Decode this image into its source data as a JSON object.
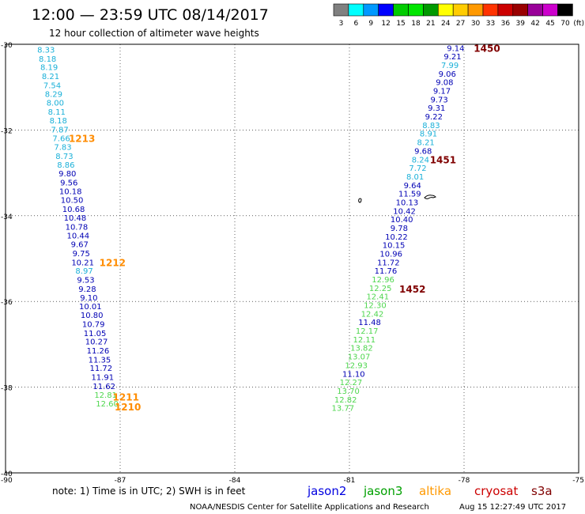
{
  "header": {
    "title": "12:00 — 23:59 UTC 08/14/2017",
    "subtitle": "12 hour collection of altimeter wave heights"
  },
  "legend": {
    "unit": "(ft)",
    "bins": [
      {
        "label": "3",
        "color": "#808080"
      },
      {
        "label": "6",
        "color": "#00ffff"
      },
      {
        "label": "9",
        "color": "#0099ff"
      },
      {
        "label": "12",
        "color": "#0000ff"
      },
      {
        "label": "15",
        "color": "#00cc00"
      },
      {
        "label": "18",
        "color": "#00e600"
      },
      {
        "label": "21",
        "color": "#009900"
      },
      {
        "label": "24",
        "color": "#ffff00"
      },
      {
        "label": "27",
        "color": "#ffcc00"
      },
      {
        "label": "30",
        "color": "#ff9900"
      },
      {
        "label": "33",
        "color": "#ff3300"
      },
      {
        "label": "36",
        "color": "#cc0000"
      },
      {
        "label": "39",
        "color": "#990000"
      },
      {
        "label": "42",
        "color": "#990099"
      },
      {
        "label": "45",
        "color": "#cc00cc"
      },
      {
        "label": "70",
        "color": "#000000"
      }
    ]
  },
  "map": {
    "lon_min": -90,
    "lon_max": -75,
    "lat_min": -40,
    "lat_max": -30,
    "lon_ticks": [
      "-90",
      "-87",
      "-84",
      "-81",
      "-78",
      "-75"
    ],
    "lat_ticks": [
      "-30",
      "-32",
      "-34",
      "-36",
      "-38",
      "-40"
    ],
    "lon_tick_values": [
      -90,
      -87,
      -84,
      -81,
      -78,
      -75
    ],
    "lat_tick_values": [
      -30,
      -32,
      -34,
      -36,
      -38,
      -40
    ],
    "grid_lat": [
      -32,
      -34,
      -36,
      -38
    ],
    "grid_lon": [
      -87,
      -84,
      -81,
      -78
    ],
    "track1": [
      {
        "v": "8.33",
        "lon": -88.94,
        "lat": -30.12,
        "c": "#1ab0d8"
      },
      {
        "v": "8.18",
        "lon": -88.9,
        "lat": -30.33,
        "c": "#1ab0d8"
      },
      {
        "v": "8.19",
        "lon": -88.86,
        "lat": -30.53,
        "c": "#1ab0d8"
      },
      {
        "v": "8.21",
        "lon": -88.82,
        "lat": -30.74,
        "c": "#1ab0d8"
      },
      {
        "v": "7.54",
        "lon": -88.78,
        "lat": -30.95,
        "c": "#1ab0d8"
      },
      {
        "v": "8.29",
        "lon": -88.74,
        "lat": -31.15,
        "c": "#1ab0d8"
      },
      {
        "v": "8.00",
        "lon": -88.7,
        "lat": -31.36,
        "c": "#1ab0d8"
      },
      {
        "v": "8.11",
        "lon": -88.66,
        "lat": -31.57,
        "c": "#1ab0d8"
      },
      {
        "v": "8.18",
        "lon": -88.62,
        "lat": -31.77,
        "c": "#1ab0d8"
      },
      {
        "v": "7.87",
        "lon": -88.58,
        "lat": -31.98,
        "c": "#1ab0d8"
      },
      {
        "v": "7.66",
        "lon": -88.54,
        "lat": -32.19,
        "c": "#1ab0d8"
      },
      {
        "v": "7.83",
        "lon": -88.5,
        "lat": -32.39,
        "c": "#1ab0d8"
      },
      {
        "v": "8.73",
        "lon": -88.46,
        "lat": -32.6,
        "c": "#1ab0d8"
      },
      {
        "v": "8.86",
        "lon": -88.42,
        "lat": -32.8,
        "c": "#1ab0d8"
      },
      {
        "v": "9.80",
        "lon": -88.38,
        "lat": -33.01,
        "c": "#0000b4"
      },
      {
        "v": "9.56",
        "lon": -88.34,
        "lat": -33.22,
        "c": "#0000b4"
      },
      {
        "v": "10.18",
        "lon": -88.3,
        "lat": -33.42,
        "c": "#0000b4"
      },
      {
        "v": "10.50",
        "lon": -88.26,
        "lat": -33.63,
        "c": "#0000b4"
      },
      {
        "v": "10.68",
        "lon": -88.22,
        "lat": -33.84,
        "c": "#0000b4"
      },
      {
        "v": "10.48",
        "lon": -88.18,
        "lat": -34.04,
        "c": "#0000b4"
      },
      {
        "v": "10.78",
        "lon": -88.14,
        "lat": -34.25,
        "c": "#0000b4"
      },
      {
        "v": "10.44",
        "lon": -88.1,
        "lat": -34.46,
        "c": "#0000b4"
      },
      {
        "v": "9.67",
        "lon": -88.06,
        "lat": -34.66,
        "c": "#0000b4"
      },
      {
        "v": "9.75",
        "lon": -88.02,
        "lat": -34.87,
        "c": "#0000b4"
      },
      {
        "v": "10.21",
        "lon": -87.98,
        "lat": -35.08,
        "c": "#0000b4"
      },
      {
        "v": "8.97",
        "lon": -87.94,
        "lat": -35.28,
        "c": "#1ab0d8"
      },
      {
        "v": "9.53",
        "lon": -87.9,
        "lat": -35.49,
        "c": "#0000b4"
      },
      {
        "v": "9.28",
        "lon": -87.86,
        "lat": -35.7,
        "c": "#0000b4"
      },
      {
        "v": "9.10",
        "lon": -87.82,
        "lat": -35.9,
        "c": "#0000b4"
      },
      {
        "v": "10.01",
        "lon": -87.78,
        "lat": -36.11,
        "c": "#0000b4"
      },
      {
        "v": "10.80",
        "lon": -87.74,
        "lat": -36.31,
        "c": "#0000b4"
      },
      {
        "v": "10.79",
        "lon": -87.7,
        "lat": -36.52,
        "c": "#0000b4"
      },
      {
        "v": "11.05",
        "lon": -87.66,
        "lat": -36.73,
        "c": "#0000b4"
      },
      {
        "v": "10.27",
        "lon": -87.62,
        "lat": -36.93,
        "c": "#0000b4"
      },
      {
        "v": "11.26",
        "lon": -87.58,
        "lat": -37.14,
        "c": "#0000b4"
      },
      {
        "v": "11.35",
        "lon": -87.54,
        "lat": -37.35,
        "c": "#0000b4"
      },
      {
        "v": "11.72",
        "lon": -87.5,
        "lat": -37.55,
        "c": "#0000b4"
      },
      {
        "v": "11.91",
        "lon": -87.46,
        "lat": -37.76,
        "c": "#0000b4"
      },
      {
        "v": "11.62",
        "lon": -87.42,
        "lat": -37.97,
        "c": "#0000b4"
      },
      {
        "v": "12.81",
        "lon": -87.38,
        "lat": -38.17,
        "c": "#4ed64e"
      },
      {
        "v": "12.60",
        "lon": -87.34,
        "lat": -38.38,
        "c": "#4ed64e"
      }
    ],
    "track2": [
      {
        "v": "9.14",
        "lon": -78.22,
        "lat": -30.08,
        "c": "#0000b4"
      },
      {
        "v": "9.21",
        "lon": -78.3,
        "lat": -30.28,
        "c": "#0000b4"
      },
      {
        "v": "7.99",
        "lon": -78.37,
        "lat": -30.48,
        "c": "#1ab0d8"
      },
      {
        "v": "9.06",
        "lon": -78.44,
        "lat": -30.68,
        "c": "#0000b4"
      },
      {
        "v": "9.08",
        "lon": -78.51,
        "lat": -30.88,
        "c": "#0000b4"
      },
      {
        "v": "9.17",
        "lon": -78.58,
        "lat": -31.08,
        "c": "#0000b4"
      },
      {
        "v": "9.73",
        "lon": -78.65,
        "lat": -31.28,
        "c": "#0000b4"
      },
      {
        "v": "9.31",
        "lon": -78.72,
        "lat": -31.48,
        "c": "#0000b4"
      },
      {
        "v": "9.22",
        "lon": -78.79,
        "lat": -31.68,
        "c": "#0000b4"
      },
      {
        "v": "8.83",
        "lon": -78.86,
        "lat": -31.88,
        "c": "#1ab0d8"
      },
      {
        "v": "8.91",
        "lon": -78.93,
        "lat": -32.08,
        "c": "#1ab0d8"
      },
      {
        "v": "8.21",
        "lon": -79.0,
        "lat": -32.28,
        "c": "#1ab0d8"
      },
      {
        "v": "9.68",
        "lon": -79.07,
        "lat": -32.48,
        "c": "#0000b4"
      },
      {
        "v": "8.24",
        "lon": -79.14,
        "lat": -32.68,
        "c": "#1ab0d8"
      },
      {
        "v": "7.72",
        "lon": -79.21,
        "lat": -32.88,
        "c": "#1ab0d8"
      },
      {
        "v": "8.01",
        "lon": -79.28,
        "lat": -33.08,
        "c": "#1ab0d8"
      },
      {
        "v": "9.64",
        "lon": -79.35,
        "lat": -33.28,
        "c": "#0000b4"
      },
      {
        "v": "11.59",
        "lon": -79.42,
        "lat": -33.48,
        "c": "#0000b4"
      },
      {
        "v": "10.13",
        "lon": -79.49,
        "lat": -33.68,
        "c": "#0000b4"
      },
      {
        "v": "10.42",
        "lon": -79.56,
        "lat": -33.88,
        "c": "#0000b4"
      },
      {
        "v": "10.40",
        "lon": -79.63,
        "lat": -34.08,
        "c": "#0000b4"
      },
      {
        "v": "9.78",
        "lon": -79.7,
        "lat": -34.28,
        "c": "#0000b4"
      },
      {
        "v": "10.22",
        "lon": -79.77,
        "lat": -34.48,
        "c": "#0000b4"
      },
      {
        "v": "10.15",
        "lon": -79.84,
        "lat": -34.68,
        "c": "#0000b4"
      },
      {
        "v": "10.96",
        "lon": -79.91,
        "lat": -34.88,
        "c": "#0000b4"
      },
      {
        "v": "11.72",
        "lon": -79.98,
        "lat": -35.08,
        "c": "#0000b4"
      },
      {
        "v": "11.76",
        "lon": -80.05,
        "lat": -35.28,
        "c": "#0000b4"
      },
      {
        "v": "12.96",
        "lon": -80.12,
        "lat": -35.48,
        "c": "#4ed64e"
      },
      {
        "v": "12.25",
        "lon": -80.19,
        "lat": -35.68,
        "c": "#4ed64e"
      },
      {
        "v": "12.41",
        "lon": -80.26,
        "lat": -35.88,
        "c": "#4ed64e"
      },
      {
        "v": "12.30",
        "lon": -80.33,
        "lat": -36.08,
        "c": "#4ed64e"
      },
      {
        "v": "12.42",
        "lon": -80.4,
        "lat": -36.28,
        "c": "#4ed64e"
      },
      {
        "v": "11.48",
        "lon": -80.47,
        "lat": -36.48,
        "c": "#0000b4"
      },
      {
        "v": "12.17",
        "lon": -80.54,
        "lat": -36.68,
        "c": "#4ed64e"
      },
      {
        "v": "12.11",
        "lon": -80.61,
        "lat": -36.88,
        "c": "#4ed64e"
      },
      {
        "v": "13.82",
        "lon": -80.68,
        "lat": -37.08,
        "c": "#4ed64e"
      },
      {
        "v": "13.07",
        "lon": -80.75,
        "lat": -37.28,
        "c": "#4ed64e"
      },
      {
        "v": "12.93",
        "lon": -80.82,
        "lat": -37.48,
        "c": "#4ed64e"
      },
      {
        "v": "11.10",
        "lon": -80.89,
        "lat": -37.68,
        "c": "#0000b4"
      },
      {
        "v": "12.27",
        "lon": -80.96,
        "lat": -37.88,
        "c": "#4ed64e"
      },
      {
        "v": "13.70",
        "lon": -81.03,
        "lat": -38.08,
        "c": "#4ed64e"
      },
      {
        "v": "12.82",
        "lon": -81.1,
        "lat": -38.28,
        "c": "#4ed64e"
      },
      {
        "v": "13.77",
        "lon": -81.17,
        "lat": -38.48,
        "c": "#4ed64e"
      }
    ],
    "pass_labels": [
      {
        "t": "1450",
        "lon": -77.4,
        "lat": -30.08,
        "c": "#800000"
      },
      {
        "t": "1213",
        "lon": -88.0,
        "lat": -32.19,
        "c": "#ff8c00"
      },
      {
        "t": "1451",
        "lon": -78.55,
        "lat": -32.68,
        "c": "#800000"
      },
      {
        "t": "1212",
        "lon": -87.2,
        "lat": -35.08,
        "c": "#ff8c00"
      },
      {
        "t": "1452",
        "lon": -79.35,
        "lat": -35.7,
        "c": "#800000"
      },
      {
        "t": "1211",
        "lon": -86.85,
        "lat": -38.22,
        "c": "#ff8c00"
      },
      {
        "t": "1210",
        "lon": -86.8,
        "lat": -38.45,
        "c": "#ff8c00"
      }
    ]
  },
  "footer": {
    "note": "note: 1) Time is in UTC; 2) SWH is in feet",
    "satellites": [
      {
        "name": "jason2",
        "color": "#0000e0"
      },
      {
        "name": "jason3",
        "color": "#00a000"
      },
      {
        "name": "altika",
        "color": "#ff9900"
      },
      {
        "name": "cryosat",
        "color": "#cc0000"
      },
      {
        "name": "s3a",
        "color": "#800000"
      }
    ],
    "credit": "NOAA/NESDIS Center for Satellite Applications and Research",
    "timestamp": "Aug 15 12:27:49 UTC 2017"
  }
}
